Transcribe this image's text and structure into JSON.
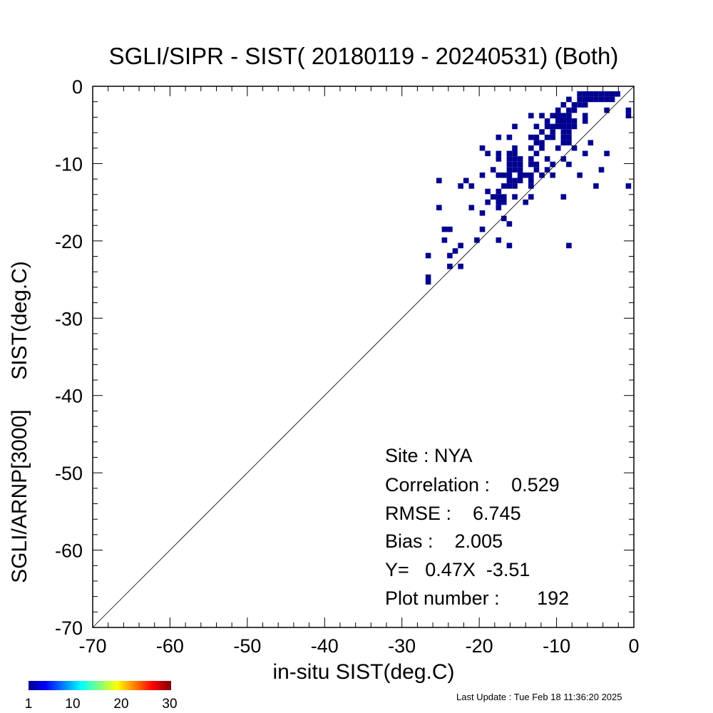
{
  "chart_data": {
    "type": "heatmap",
    "title": "SGLI/SIPR - SIST( 20180119 - 20240531) (Both)",
    "xlabel": "in-situ SIST(deg.C)",
    "ylabel": "SGLI/ARNP[3000]     SIST(deg.C)",
    "xlim": [
      -70,
      0
    ],
    "ylim": [
      -70,
      0
    ],
    "x_ticks": [
      "-70",
      "-60",
      "-50",
      "-40",
      "-30",
      "-20",
      "-10",
      "0"
    ],
    "y_ticks": [
      "-70",
      "-60",
      "-50",
      "-40",
      "-30",
      "-20",
      "-10",
      "0"
    ],
    "one_to_one_line": true,
    "bin_size": 0.7,
    "points": [
      [
        -7,
        -1
      ],
      [
        -6.3,
        -1
      ],
      [
        -5.6,
        -1
      ],
      [
        -4.9,
        -1
      ],
      [
        -4.2,
        -1
      ],
      [
        -3.5,
        -1
      ],
      [
        -2.8,
        -1
      ],
      [
        -2.1,
        -1
      ],
      [
        -7,
        -1.7
      ],
      [
        -6.3,
        -1.7
      ],
      [
        -5.6,
        -1.7
      ],
      [
        -4.9,
        -1.7
      ],
      [
        -4.2,
        -1.7
      ],
      [
        -3.5,
        -1.7
      ],
      [
        -2.8,
        -1.7
      ],
      [
        -8.4,
        -1.7
      ],
      [
        -7.7,
        -2.4
      ],
      [
        -9.1,
        -2.4
      ],
      [
        -7,
        -2.4
      ],
      [
        -6.3,
        -2.4
      ],
      [
        -9.8,
        -3.1
      ],
      [
        -8.4,
        -3.1
      ],
      [
        -7.7,
        -3.1
      ],
      [
        -3.5,
        -3.1
      ],
      [
        -0.7,
        -3.1
      ],
      [
        -10.5,
        -3.8
      ],
      [
        -9.8,
        -3.8
      ],
      [
        -9.1,
        -3.8
      ],
      [
        -8.4,
        -3.8
      ],
      [
        -6.3,
        -3.8
      ],
      [
        -0.7,
        -3.8
      ],
      [
        -11.9,
        -3.8
      ],
      [
        -13.3,
        -3.8
      ],
      [
        -9.8,
        -4.5
      ],
      [
        -9.1,
        -4.5
      ],
      [
        -8.4,
        -4.5
      ],
      [
        -7.7,
        -4.5
      ],
      [
        -6.3,
        -4.5
      ],
      [
        -11.2,
        -4.5
      ],
      [
        -10.5,
        -5.2
      ],
      [
        -9.8,
        -5.2
      ],
      [
        -9.1,
        -5.2
      ],
      [
        -8.4,
        -5.2
      ],
      [
        -11.2,
        -5.2
      ],
      [
        -12.6,
        -5.2
      ],
      [
        -15.4,
        -5.2
      ],
      [
        -7.7,
        -5.2
      ],
      [
        -9.1,
        -5.9
      ],
      [
        -8.4,
        -5.9
      ],
      [
        -11.9,
        -5.9
      ],
      [
        -10.5,
        -5.9
      ],
      [
        -13.3,
        -6.6
      ],
      [
        -12.6,
        -6.6
      ],
      [
        -11.2,
        -6.6
      ],
      [
        -10.5,
        -6.6
      ],
      [
        -9.1,
        -6.6
      ],
      [
        -8.4,
        -6.6
      ],
      [
        -16.1,
        -6.6
      ],
      [
        -17.5,
        -6.6
      ],
      [
        -9.1,
        -7.3
      ],
      [
        -8.4,
        -7.3
      ],
      [
        -12.6,
        -7.3
      ],
      [
        -11.9,
        -7.3
      ],
      [
        -5.6,
        -7.3
      ],
      [
        -13.3,
        -8
      ],
      [
        -11.9,
        -8
      ],
      [
        -9.8,
        -8
      ],
      [
        -7.7,
        -8
      ],
      [
        -15.4,
        -8
      ],
      [
        -19.6,
        -8
      ],
      [
        -18.9,
        -8.7
      ],
      [
        -16.1,
        -8.7
      ],
      [
        -15.4,
        -8.7
      ],
      [
        -12.6,
        -8.7
      ],
      [
        -6.3,
        -8.7
      ],
      [
        -3.5,
        -8.7
      ],
      [
        -17.5,
        -8.7
      ],
      [
        -16.1,
        -9.4
      ],
      [
        -15.4,
        -9.4
      ],
      [
        -14.7,
        -9.4
      ],
      [
        -13.3,
        -9.4
      ],
      [
        -11.2,
        -9.4
      ],
      [
        -9.1,
        -9.4
      ],
      [
        -17.5,
        -9.4
      ],
      [
        -16.1,
        -10.1
      ],
      [
        -15.4,
        -10.1
      ],
      [
        -14.7,
        -10.1
      ],
      [
        -13.3,
        -10.1
      ],
      [
        -10.5,
        -10.1
      ],
      [
        -8.4,
        -10.1
      ],
      [
        -12.6,
        -10.1
      ],
      [
        -16.1,
        -10.8
      ],
      [
        -15.4,
        -10.8
      ],
      [
        -14.7,
        -10.8
      ],
      [
        -12.6,
        -10.8
      ],
      [
        -11.2,
        -10.8
      ],
      [
        -18.2,
        -10.8
      ],
      [
        -4.2,
        -10.8
      ],
      [
        -16.8,
        -11.5
      ],
      [
        -14.7,
        -11.5
      ],
      [
        -14,
        -11.5
      ],
      [
        -13.3,
        -11.5
      ],
      [
        -11.9,
        -11.5
      ],
      [
        -10.5,
        -11.5
      ],
      [
        -7,
        -11.5
      ],
      [
        -17.5,
        -11.5
      ],
      [
        -19.6,
        -11.5
      ],
      [
        -16.1,
        -11.5
      ],
      [
        -14.7,
        -12.2
      ],
      [
        -13.3,
        -12.2
      ],
      [
        -15.4,
        -12.2
      ],
      [
        -16.1,
        -12.2
      ],
      [
        -21.7,
        -12.2
      ],
      [
        -25.2,
        -12.2
      ],
      [
        -16.8,
        -12.9
      ],
      [
        -16.1,
        -12.9
      ],
      [
        -15.4,
        -12.9
      ],
      [
        -21,
        -12.9
      ],
      [
        -13.3,
        -12.9
      ],
      [
        -22.4,
        -12.9
      ],
      [
        -4.9,
        -12.9
      ],
      [
        -0.7,
        -12.9
      ],
      [
        -17.5,
        -13.6
      ],
      [
        -18.9,
        -13.6
      ],
      [
        -17.5,
        -14.3
      ],
      [
        -16.8,
        -14.3
      ],
      [
        -18.2,
        -14.3
      ],
      [
        -13.3,
        -14.3
      ],
      [
        -15.4,
        -14.3
      ],
      [
        -9.1,
        -14.3
      ],
      [
        -17.5,
        -15
      ],
      [
        -16.8,
        -15
      ],
      [
        -14,
        -15
      ],
      [
        -18.9,
        -15
      ],
      [
        -17.5,
        -15.7
      ],
      [
        -21,
        -15.7
      ],
      [
        -25.2,
        -15.7
      ],
      [
        -19.6,
        -16.4
      ],
      [
        -16.8,
        -17.1
      ],
      [
        -16.1,
        -17.8
      ],
      [
        -19.6,
        -18.5
      ],
      [
        -23.8,
        -18.5
      ],
      [
        -24.5,
        -18.5
      ],
      [
        -24.5,
        -19.9
      ],
      [
        -17.5,
        -19.9
      ],
      [
        -20.3,
        -19.9
      ],
      [
        -22.4,
        -20.6
      ],
      [
        -16.1,
        -20.6
      ],
      [
        -8.4,
        -20.6
      ],
      [
        -23.1,
        -21.3
      ],
      [
        -23.8,
        -21.9
      ],
      [
        -26.6,
        -21.9
      ],
      [
        -23.8,
        -23.3
      ],
      [
        -22.4,
        -23.3
      ],
      [
        -26.6,
        -24.7
      ],
      [
        -26.6,
        -25.3
      ]
    ]
  },
  "stats": {
    "site": "Site : NYA",
    "correlation": "Correlation :    0.529",
    "rmse": "RMSE :    6.745",
    "bias": "Bias :    2.005",
    "fit": "Y=   0.47X  -3.51",
    "plot_number": "Plot number :       192"
  },
  "colorbar": {
    "labels": [
      "1",
      "10",
      "20",
      "30"
    ],
    "colors": [
      "#00008f",
      "#0000ff",
      "#00ffff",
      "#ffff00",
      "#ff0000",
      "#800000"
    ]
  },
  "last_update": "Last Update : Tue Feb 18 11:36:20 2025"
}
